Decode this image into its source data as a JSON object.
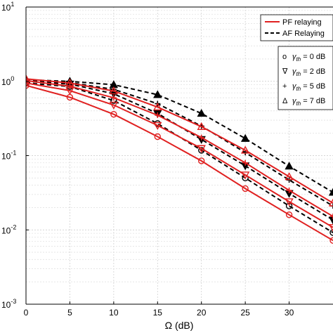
{
  "chart_data": {
    "type": "line",
    "xlabel": "Ω (dB)",
    "ylabel": "",
    "yscale": "log",
    "xlim": [
      0,
      35
    ],
    "ylim": [
      0.001,
      10
    ],
    "grid": true,
    "x_ticks": [
      "0",
      "5",
      "10",
      "15",
      "20",
      "25",
      "30"
    ],
    "y_ticks": [
      {
        "base": "10",
        "exp": "-3"
      },
      {
        "base": "10",
        "exp": "-2"
      },
      {
        "base": "10",
        "exp": "-1"
      },
      {
        "base": "10",
        "exp": "0"
      },
      {
        "base": "10",
        "exp": "1"
      }
    ],
    "legend_lines": {
      "position": "top-right",
      "entries": [
        {
          "label": "PF relaying",
          "style": "solid",
          "color": "#e02020"
        },
        {
          "label": "AF Relaying",
          "style": "dashed",
          "color": "#000000"
        }
      ]
    },
    "legend_markers": {
      "position": "upper-right",
      "entries": [
        {
          "glyph": "o",
          "symbol": "γ",
          "subscript": "th",
          "value": " = 0 dB"
        },
        {
          "glyph": "∇",
          "symbol": "γ",
          "subscript": "th",
          "value": " = 2 dB"
        },
        {
          "glyph": "+",
          "symbol": "γ",
          "subscript": "th",
          "value": " = 5 dB"
        },
        {
          "glyph": "Δ",
          "symbol": "γ",
          "subscript": "th",
          "value": " = 7 dB"
        }
      ]
    },
    "series": [
      {
        "kind": "PF",
        "marker": "circle-open",
        "x": [
          0,
          5,
          10,
          15,
          20,
          25,
          30,
          35
        ],
        "y": [
          0.88,
          0.61,
          0.36,
          0.18,
          0.085,
          0.036,
          0.016,
          0.0072
        ]
      },
      {
        "kind": "PF",
        "marker": "triangle-down-open",
        "x": [
          0,
          5,
          10,
          15,
          20,
          25,
          30,
          35
        ],
        "y": [
          0.95,
          0.75,
          0.48,
          0.255,
          0.125,
          0.055,
          0.024,
          0.0108
        ]
      },
      {
        "kind": "PF",
        "marker": "plus",
        "x": [
          0,
          5,
          10,
          15,
          20,
          25,
          30,
          35
        ],
        "y": [
          1.02,
          0.86,
          0.6,
          0.35,
          0.175,
          0.08,
          0.034,
          0.0152
        ]
      },
      {
        "kind": "PF",
        "marker": "triangle-up-open",
        "x": [
          0,
          5,
          10,
          15,
          20,
          25,
          30,
          35
        ],
        "y": [
          1.08,
          0.95,
          0.74,
          0.45,
          0.245,
          0.118,
          0.052,
          0.023
        ]
      },
      {
        "kind": "AF",
        "marker": "circle-open",
        "x": [
          0,
          5,
          10,
          15,
          20,
          25,
          30,
          35
        ],
        "y": [
          0.95,
          0.85,
          0.55,
          0.27,
          0.118,
          0.05,
          0.021,
          0.0092
        ]
      },
      {
        "kind": "AF",
        "marker": "triangle-down-filled",
        "x": [
          0,
          5,
          10,
          15,
          20,
          25,
          30,
          35
        ],
        "y": [
          1.0,
          0.92,
          0.68,
          0.37,
          0.165,
          0.073,
          0.031,
          0.0136
        ]
      },
      {
        "kind": "AF",
        "marker": "plus",
        "x": [
          0,
          5,
          10,
          15,
          20,
          25,
          30,
          35
        ],
        "y": [
          1.02,
          0.96,
          0.78,
          0.5,
          0.25,
          0.11,
          0.047,
          0.021
        ]
      },
      {
        "kind": "AF",
        "marker": "triangle-up-filled",
        "x": [
          0,
          5,
          10,
          15,
          20,
          25,
          30,
          35
        ],
        "y": [
          1.05,
          1.0,
          0.9,
          0.66,
          0.37,
          0.17,
          0.072,
          0.032
        ]
      }
    ]
  }
}
